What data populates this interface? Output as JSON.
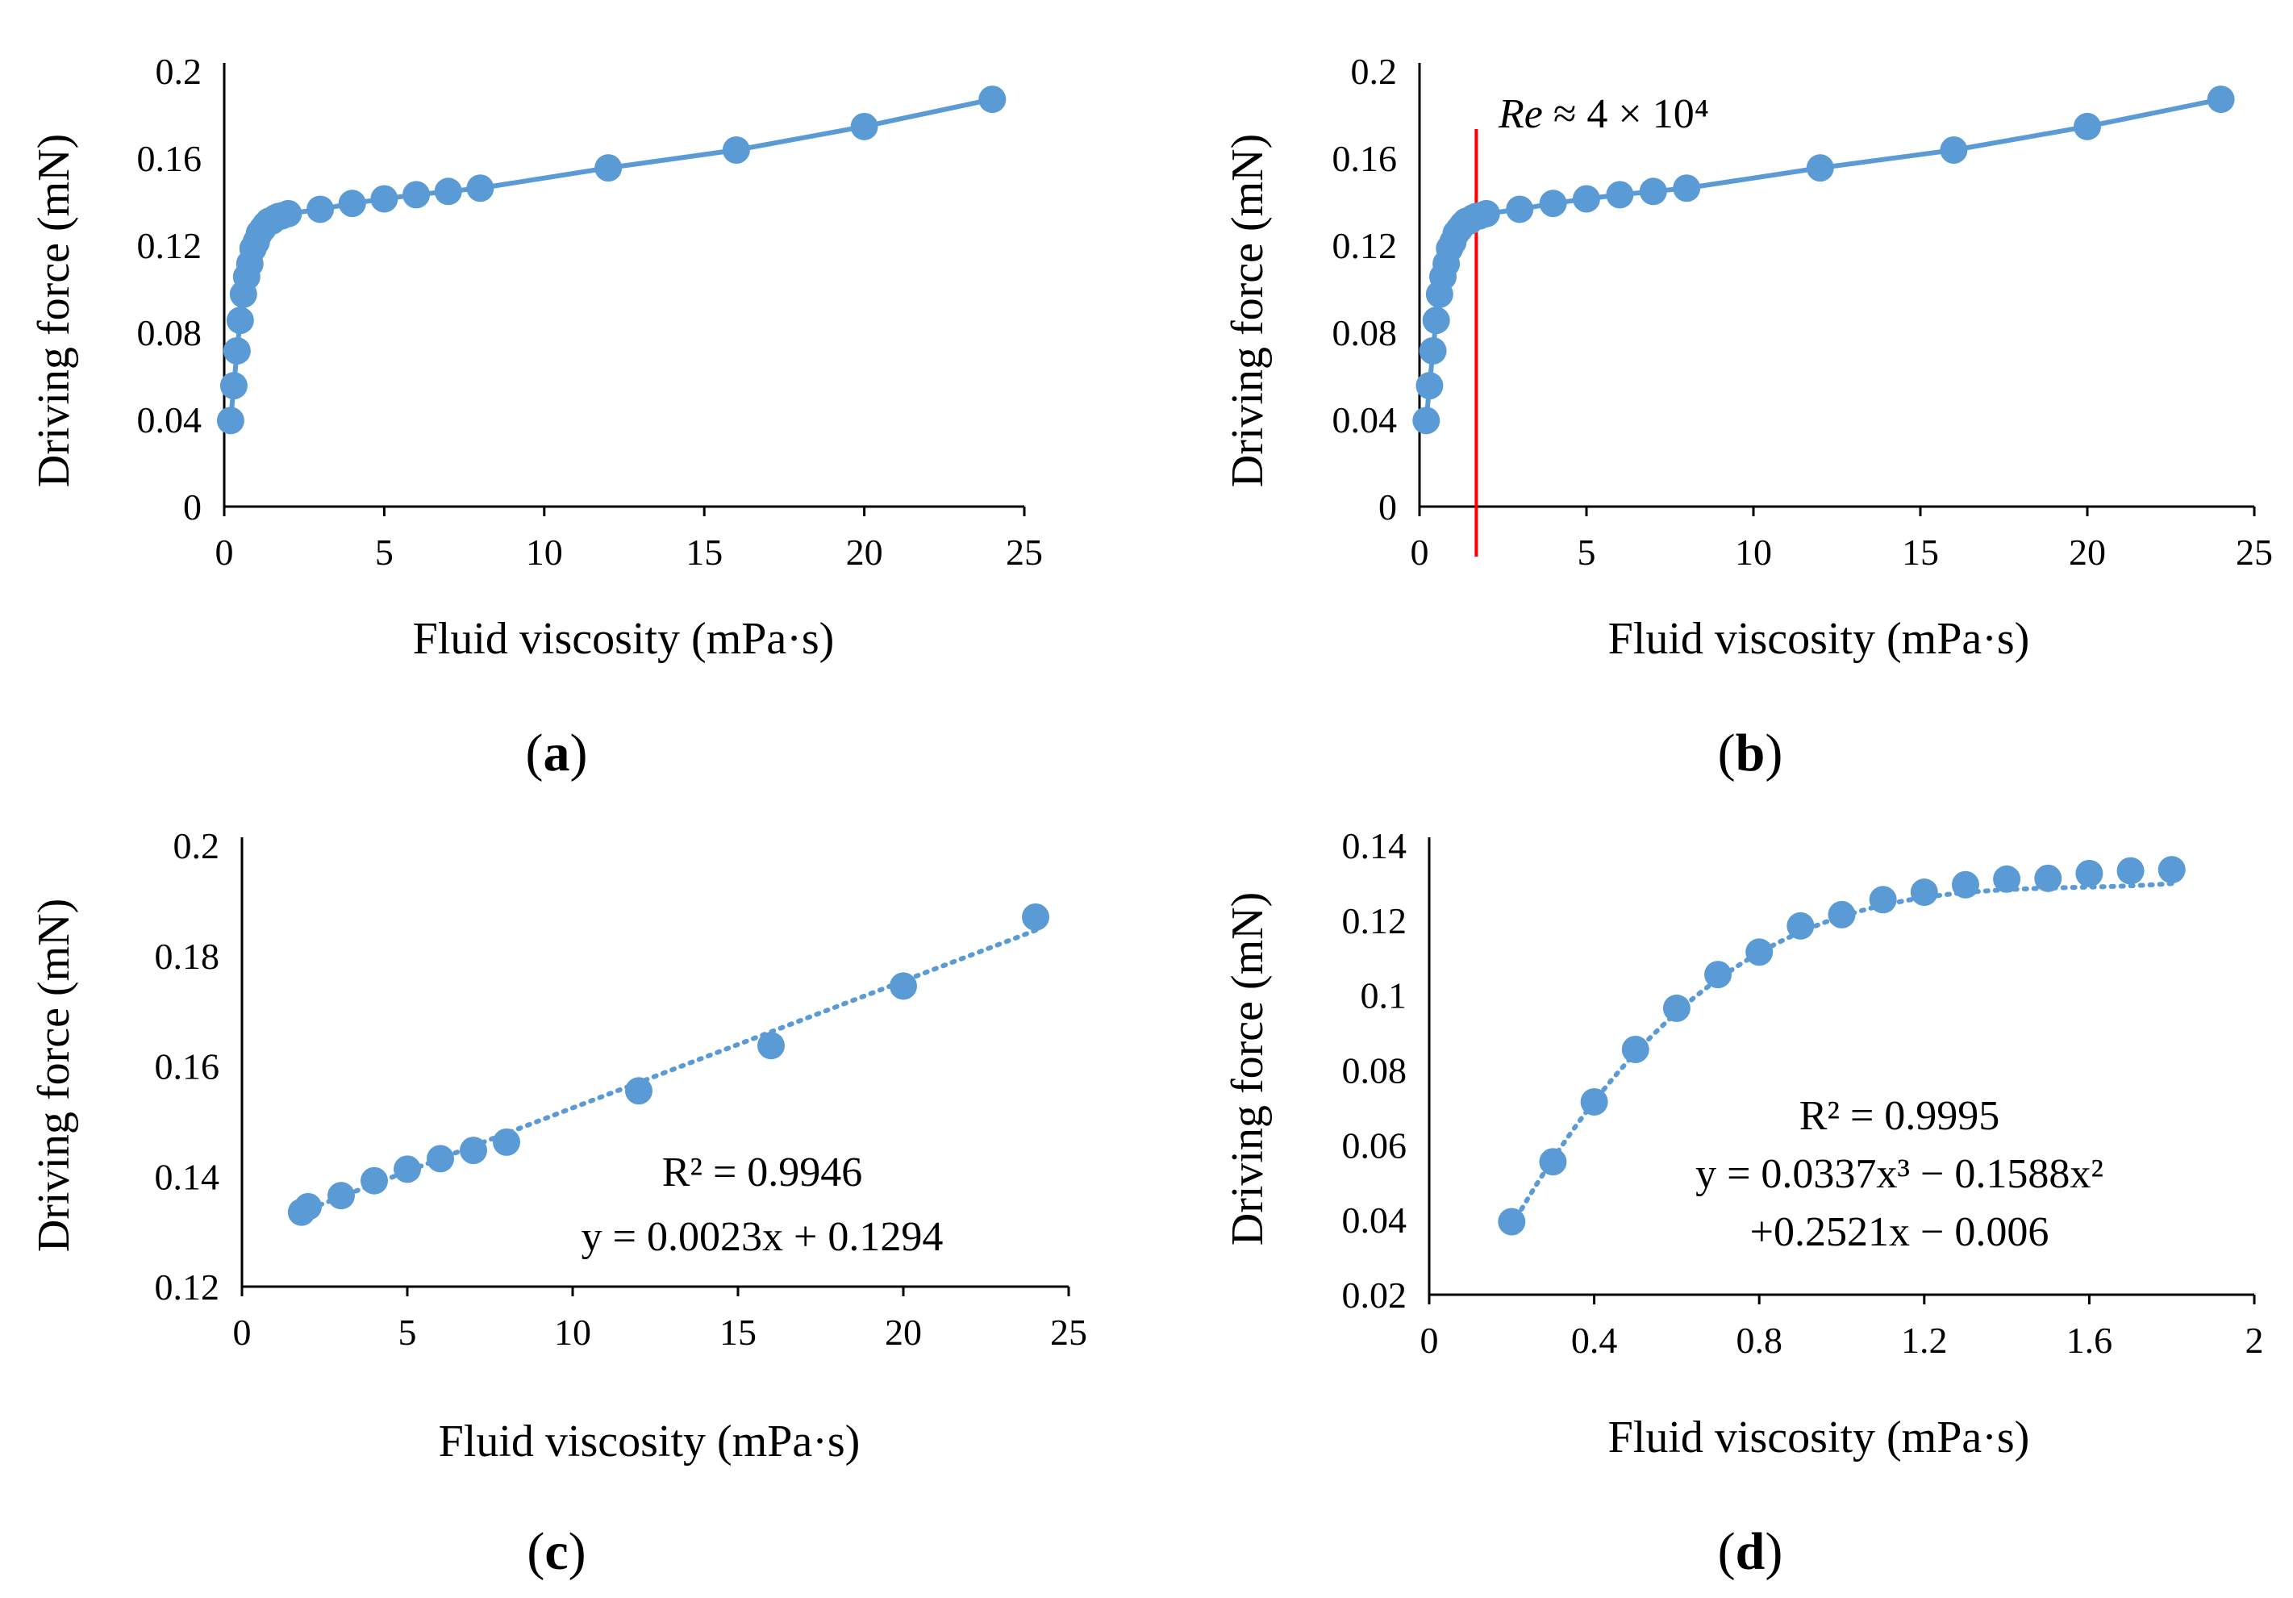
{
  "colors": {
    "series": "#5b9bd5",
    "marker_line": "#ff0000",
    "axis": "#000000"
  },
  "chart_data": [
    {
      "panel": "a",
      "panel_letter": "a",
      "type": "line",
      "xlabel": "Fluid viscosity (mPa·s)",
      "ylabel": "Driving force (mN)",
      "xlim": [
        0,
        25
      ],
      "ylim": [
        0,
        0.2
      ],
      "xticks": [
        0,
        5,
        10,
        15,
        20,
        25
      ],
      "yticks": [
        0,
        0.04,
        0.08,
        0.12,
        0.16,
        0.2
      ],
      "xtick_labels": [
        "0",
        "5",
        "10",
        "15",
        "20",
        "25"
      ],
      "ytick_labels": [
        "0",
        "0.04",
        "0.08",
        "0.12",
        "0.16",
        "0.2"
      ],
      "line_style": "solid",
      "x": [
        0.2,
        0.3,
        0.4,
        0.5,
        0.6,
        0.7,
        0.8,
        0.9,
        1.0,
        1.1,
        1.2,
        1.3,
        1.4,
        1.5,
        1.6,
        1.7,
        1.8,
        2,
        3,
        4,
        5,
        6,
        7,
        8,
        12,
        16,
        20,
        24
      ],
      "y": [
        0.0395,
        0.0555,
        0.0715,
        0.0855,
        0.0975,
        0.1055,
        0.1115,
        0.1185,
        0.1215,
        0.1255,
        0.1275,
        0.1295,
        0.131,
        0.1312,
        0.1325,
        0.1332,
        0.1335,
        0.1345,
        0.1365,
        0.1392,
        0.1413,
        0.1432,
        0.1447,
        0.1462,
        0.1555,
        0.1637,
        0.1745,
        0.187
      ]
    },
    {
      "panel": "b",
      "panel_letter": "b",
      "type": "line",
      "xlabel": "Fluid viscosity (mPa·s)",
      "ylabel": "Driving force (mN)",
      "xlim": [
        0,
        25
      ],
      "ylim": [
        0,
        0.2
      ],
      "xticks": [
        0,
        5,
        10,
        15,
        20,
        25
      ],
      "yticks": [
        0,
        0.04,
        0.08,
        0.12,
        0.16,
        0.2
      ],
      "xtick_labels": [
        "0",
        "5",
        "10",
        "15",
        "20",
        "25"
      ],
      "ytick_labels": [
        "0",
        "0.04",
        "0.08",
        "0.12",
        "0.16",
        "0.2"
      ],
      "line_style": "solid",
      "vertical_marker_x": 1.7,
      "annotation_re_italic": "Re",
      "annotation_re_rest": " ≈ 4 × 10⁴",
      "x": [
        0.2,
        0.3,
        0.4,
        0.5,
        0.6,
        0.7,
        0.8,
        0.9,
        1.0,
        1.1,
        1.2,
        1.3,
        1.4,
        1.5,
        1.6,
        1.7,
        1.8,
        2,
        3,
        4,
        5,
        6,
        7,
        8,
        12,
        16,
        20,
        24
      ],
      "y": [
        0.0395,
        0.0555,
        0.0715,
        0.0855,
        0.0975,
        0.1055,
        0.1115,
        0.1185,
        0.1215,
        0.1255,
        0.1275,
        0.1295,
        0.131,
        0.1312,
        0.1325,
        0.1332,
        0.1335,
        0.1345,
        0.1365,
        0.1392,
        0.1413,
        0.1432,
        0.1447,
        0.1462,
        0.1555,
        0.1637,
        0.1745,
        0.187
      ]
    },
    {
      "panel": "c",
      "panel_letter": "c",
      "type": "scatter",
      "xlabel": "Fluid viscosity (mPa·s)",
      "ylabel": "Driving force (mN)",
      "xlim": [
        0,
        25
      ],
      "ylim": [
        0.12,
        0.2
      ],
      "xticks": [
        0,
        5,
        10,
        15,
        20,
        25
      ],
      "yticks": [
        0.12,
        0.14,
        0.16,
        0.18,
        0.2
      ],
      "xtick_labels": [
        "0",
        "5",
        "10",
        "15",
        "20",
        "25"
      ],
      "ytick_labels": [
        "0.12",
        "0.14",
        "0.16",
        "0.18",
        "0.2"
      ],
      "trendline": {
        "kind": "linear",
        "coef": [
          0.0023,
          0.1294
        ],
        "x_range": [
          1.8,
          24
        ]
      },
      "annotation_r2": "R² = 0.9946",
      "annotation_eq": "y = 0.0023x + 0.1294",
      "x": [
        1.8,
        2,
        3,
        4,
        5,
        6,
        7,
        8,
        12,
        16,
        20,
        24
      ],
      "y": [
        0.1335,
        0.1345,
        0.1365,
        0.1392,
        0.1413,
        0.1432,
        0.1447,
        0.1462,
        0.1555,
        0.1637,
        0.1745,
        0.187
      ]
    },
    {
      "panel": "d",
      "panel_letter": "d",
      "type": "scatter",
      "xlabel": "Fluid viscosity (mPa·s)",
      "ylabel": "Driving force (mN)",
      "xlim": [
        0,
        2
      ],
      "ylim": [
        0.02,
        0.14
      ],
      "xticks": [
        0,
        0.4,
        0.8,
        1.2,
        1.6,
        2
      ],
      "yticks": [
        0.02,
        0.04,
        0.06,
        0.08,
        0.1,
        0.12,
        0.14
      ],
      "xtick_labels": [
        "0",
        "0.4",
        "0.8",
        "1.2",
        "1.6",
        "2"
      ],
      "ytick_labels": [
        "0.02",
        "0.04",
        "0.06",
        "0.08",
        "0.1",
        "0.12",
        "0.14"
      ],
      "trendline": {
        "kind": "cubic",
        "coef": [
          0.0337,
          -0.1588,
          0.2521,
          -0.006
        ],
        "x_range": [
          0.2,
          1.8
        ]
      },
      "annotation_r2": "R² = 0.9995",
      "annotation_eq": "y = 0.0337x³ − 0.1588x²",
      "annotation_eq2": "+0.2521x − 0.006",
      "x": [
        0.2,
        0.3,
        0.4,
        0.5,
        0.6,
        0.7,
        0.8,
        0.9,
        1.0,
        1.1,
        1.2,
        1.3,
        1.4,
        1.5,
        1.6,
        1.7,
        1.8
      ],
      "y": [
        0.0395,
        0.0555,
        0.0715,
        0.0855,
        0.0965,
        0.1055,
        0.1115,
        0.1185,
        0.1215,
        0.1255,
        0.1275,
        0.1295,
        0.131,
        0.1312,
        0.1325,
        0.1332,
        0.1335
      ]
    }
  ]
}
